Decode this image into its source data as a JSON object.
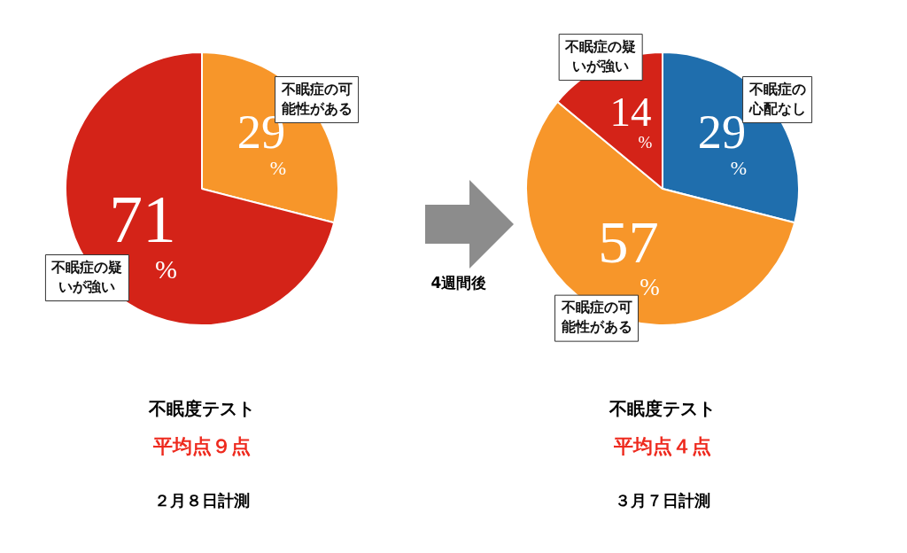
{
  "chart_data": [
    {
      "type": "pie",
      "title": "不眠度テスト",
      "subtitle": "平均点９点",
      "categories": [
        "不眠症の可能性がある",
        "不眠症の疑いが強い"
      ],
      "values": [
        29,
        71
      ],
      "value_labels": [
        "29%",
        "71%"
      ],
      "colors": [
        "#f7962a",
        "#d42318"
      ],
      "legend": false,
      "annotations": [
        "２月８日計測",
        "4週間後"
      ]
    },
    {
      "type": "pie",
      "title": "不眠度テスト",
      "subtitle": "平均点４点",
      "categories": [
        "不眠症の心配なし",
        "不眠症の可能性がある",
        "不眠症の疑いが強い"
      ],
      "values": [
        29,
        57,
        14
      ],
      "value_labels": [
        "29%",
        "57%",
        "14%"
      ],
      "colors": [
        "#1f6ead",
        "#f7962a",
        "#d42318"
      ],
      "legend": false,
      "annotations": [
        "３月７日計測"
      ]
    }
  ]
}
